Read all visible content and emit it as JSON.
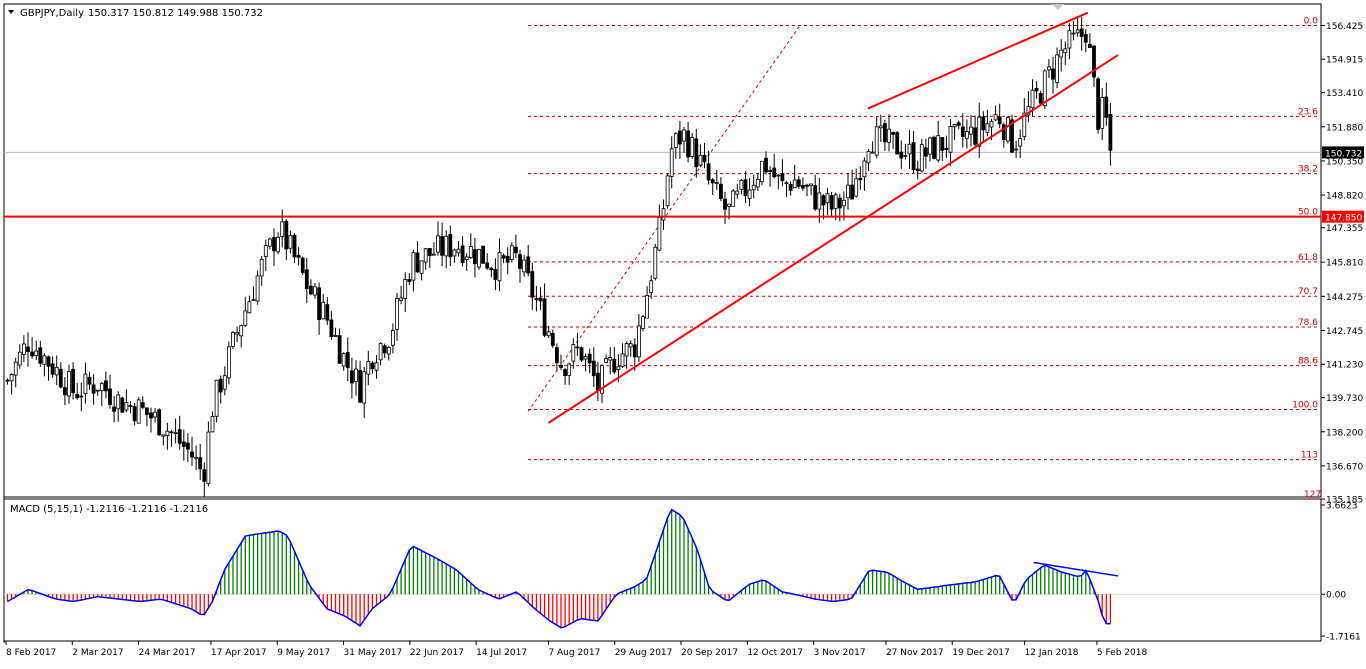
{
  "header": {
    "symbol_label": "GBPJPY,Daily",
    "ohlc_label": "150.317 150.812 149.988 150.732"
  },
  "colors": {
    "background": "#ffffff",
    "bull_candle": "#000000",
    "bear_candle": "#000000",
    "grid": "#c0c0c0",
    "fib_line": "#cc0000",
    "support_line": "#ff0000",
    "price_tag_bg": "#000000",
    "level_tag_bg": "#ff0000",
    "macd_positive": "#008000",
    "macd_negative": "#ff0000",
    "macd_signal": "#0000ff"
  },
  "chart_data": {
    "type": "candlestick",
    "symbol": "GBPJPY",
    "timeframe": "Daily",
    "y_axis_ticks": [
      "156.425",
      "154.915",
      "153.410",
      "151.880",
      "150.350",
      "148.820",
      "147.355",
      "145.810",
      "144.275",
      "142.745",
      "141.230",
      "139.730",
      "138.200",
      "136.670",
      "135.185"
    ],
    "ylim": [
      135.185,
      157.3
    ],
    "x_axis_labels": [
      "8 Feb 2017",
      "2 Mar 2017",
      "24 Mar 2017",
      "17 Apr 2017",
      "9 May 2017",
      "31 May 2017",
      "22 Jun 2017",
      "14 Jul 2017",
      "7 Aug 2017",
      "29 Aug 2017",
      "20 Sep 2017",
      "12 Oct 2017",
      "3 Nov 2017",
      "27 Nov 2017",
      "19 Dec 2017",
      "12 Jan 2018",
      "5 Feb 2018"
    ],
    "current_price": "150.732",
    "horizontal_level": "147.850",
    "close_path": [
      {
        "d": "8 Feb 2017",
        "c": 140.5
      },
      {
        "d": "15 Feb 2017",
        "c": 142.3
      },
      {
        "d": "24 Feb 2017",
        "c": 141.0
      },
      {
        "d": "2 Mar 2017",
        "c": 140.0
      },
      {
        "d": "10 Mar 2017",
        "c": 140.4
      },
      {
        "d": "17 Mar 2017",
        "c": 139.6
      },
      {
        "d": "24 Mar 2017",
        "c": 139.2
      },
      {
        "d": "31 Mar 2017",
        "c": 138.6
      },
      {
        "d": "10 Apr 2017",
        "c": 137.2
      },
      {
        "d": "14 Apr 2017",
        "c": 136.3
      },
      {
        "d": "17 Apr 2017",
        "c": 139.3
      },
      {
        "d": "26 Apr 2017",
        "c": 143.0
      },
      {
        "d": "3 May 2017",
        "c": 145.5
      },
      {
        "d": "9 May 2017",
        "c": 147.3
      },
      {
        "d": "12 May 2017",
        "c": 146.6
      },
      {
        "d": "19 May 2017",
        "c": 144.6
      },
      {
        "d": "25 May 2017",
        "c": 143.3
      },
      {
        "d": "31 May 2017",
        "c": 141.4
      },
      {
        "d": "5 Jun 2017",
        "c": 140.2
      },
      {
        "d": "9 Jun 2017",
        "c": 141.7
      },
      {
        "d": "15 Jun 2017",
        "c": 142.6
      },
      {
        "d": "22 Jun 2017",
        "c": 145.8
      },
      {
        "d": "30 Jun 2017",
        "c": 146.3
      },
      {
        "d": "7 Jul 2017",
        "c": 146.6
      },
      {
        "d": "14 Jul 2017",
        "c": 146.2
      },
      {
        "d": "21 Jul 2017",
        "c": 145.6
      },
      {
        "d": "27 Jul 2017",
        "c": 146.0
      },
      {
        "d": "2 Aug 2017",
        "c": 144.2
      },
      {
        "d": "7 Aug 2017",
        "c": 142.6
      },
      {
        "d": "11 Aug 2017",
        "c": 141.2
      },
      {
        "d": "17 Aug 2017",
        "c": 141.9
      },
      {
        "d": "23 Aug 2017",
        "c": 140.2
      },
      {
        "d": "29 Aug 2017",
        "c": 141.6
      },
      {
        "d": "4 Sep 2017",
        "c": 142.0
      },
      {
        "d": "8 Sep 2017",
        "c": 144.3
      },
      {
        "d": "13 Sep 2017",
        "c": 147.6
      },
      {
        "d": "16 Sep 2017",
        "c": 150.8
      },
      {
        "d": "20 Sep 2017",
        "c": 151.6
      },
      {
        "d": "25 Sep 2017",
        "c": 150.5
      },
      {
        "d": "29 Sep 2017",
        "c": 149.3
      },
      {
        "d": "5 Oct 2017",
        "c": 148.0
      },
      {
        "d": "12 Oct 2017",
        "c": 149.3
      },
      {
        "d": "17 Oct 2017",
        "c": 150.3
      },
      {
        "d": "23 Oct 2017",
        "c": 149.2
      },
      {
        "d": "27 Oct 2017",
        "c": 149.5
      },
      {
        "d": "3 Nov 2017",
        "c": 148.7
      },
      {
        "d": "9 Nov 2017",
        "c": 148.2
      },
      {
        "d": "15 Nov 2017",
        "c": 148.9
      },
      {
        "d": "21 Nov 2017",
        "c": 151.5
      },
      {
        "d": "27 Nov 2017",
        "c": 151.1
      },
      {
        "d": "1 Dec 2017",
        "c": 151.0
      },
      {
        "d": "7 Dec 2017",
        "c": 150.4
      },
      {
        "d": "13 Dec 2017",
        "c": 151.0
      },
      {
        "d": "19 Dec 2017",
        "c": 151.3
      },
      {
        "d": "26 Dec 2017",
        "c": 151.6
      },
      {
        "d": "3 Jan 2018",
        "c": 152.4
      },
      {
        "d": "8 Jan 2018",
        "c": 151.1
      },
      {
        "d": "12 Jan 2018",
        "c": 152.4
      },
      {
        "d": "18 Jan 2018",
        "c": 153.8
      },
      {
        "d": "24 Jan 2018",
        "c": 155.3
      },
      {
        "d": "30 Jan 2018",
        "c": 155.9
      },
      {
        "d": "1 Feb 2018",
        "c": 156.3
      },
      {
        "d": "5 Feb 2018",
        "c": 152.2
      },
      {
        "d": "7 Feb 2018",
        "c": 152.7
      },
      {
        "d": "9 Feb 2018",
        "c": 150.73
      }
    ],
    "fibonacci_levels": [
      {
        "label": "0.0",
        "price": 156.425
      },
      {
        "label": "23.6",
        "price": 152.35
      },
      {
        "label": "38.2",
        "price": 149.78
      },
      {
        "label": "50.0",
        "price": 147.85
      },
      {
        "label": "61.8",
        "price": 145.82
      },
      {
        "label": "70.7",
        "price": 144.28
      },
      {
        "label": "78.6",
        "price": 142.9
      },
      {
        "label": "88.6",
        "price": 141.17
      },
      {
        "label": "100.0",
        "price": 139.2
      },
      {
        "label": "113",
        "price": 136.95
      },
      {
        "label": "127",
        "price": 134.9
      }
    ],
    "channel_lines": [
      {
        "name": "rising-support",
        "from": {
          "d": "7 Aug 2017",
          "p": 138.6
        },
        "to": {
          "d": "12 Feb 2018",
          "p": 155.1
        }
      },
      {
        "name": "rising-resistance",
        "from": {
          "d": "21 Nov 2017",
          "p": 152.7
        },
        "to": {
          "d": "2 Feb 2018",
          "p": 157.0
        }
      }
    ],
    "macd": {
      "label": "MACD (5,15,1) -1.2116 -1.2116 -1.2116",
      "y_axis_ticks": [
        "3.6623",
        "0.00",
        "-1.7161"
      ],
      "ylim": [
        -1.7161,
        3.6623
      ],
      "histogram_path": [
        {
          "d": "8 Feb 2017",
          "v": -0.3
        },
        {
          "d": "15 Feb 2017",
          "v": 0.2
        },
        {
          "d": "24 Feb 2017",
          "v": -0.2
        },
        {
          "d": "2 Mar 2017",
          "v": -0.3
        },
        {
          "d": "10 Mar 2017",
          "v": -0.1
        },
        {
          "d": "17 Mar 2017",
          "v": -0.2
        },
        {
          "d": "24 Mar 2017",
          "v": -0.3
        },
        {
          "d": "31 Mar 2017",
          "v": -0.2
        },
        {
          "d": "10 Apr 2017",
          "v": -0.6
        },
        {
          "d": "14 Apr 2017",
          "v": -0.9
        },
        {
          "d": "17 Apr 2017",
          "v": -0.3
        },
        {
          "d": "21 Apr 2017",
          "v": 1.0
        },
        {
          "d": "28 Apr 2017",
          "v": 2.4
        },
        {
          "d": "9 May 2017",
          "v": 2.6
        },
        {
          "d": "12 May 2017",
          "v": 2.4
        },
        {
          "d": "19 May 2017",
          "v": 0.4
        },
        {
          "d": "25 May 2017",
          "v": -0.6
        },
        {
          "d": "31 May 2017",
          "v": -0.9
        },
        {
          "d": "5 Jun 2017",
          "v": -1.3
        },
        {
          "d": "9 Jun 2017",
          "v": -0.6
        },
        {
          "d": "15 Jun 2017",
          "v": 0.0
        },
        {
          "d": "22 Jun 2017",
          "v": 2.0
        },
        {
          "d": "30 Jun 2017",
          "v": 1.5
        },
        {
          "d": "7 Jul 2017",
          "v": 1.0
        },
        {
          "d": "14 Jul 2017",
          "v": 0.2
        },
        {
          "d": "21 Jul 2017",
          "v": -0.2
        },
        {
          "d": "27 Jul 2017",
          "v": 0.1
        },
        {
          "d": "2 Aug 2017",
          "v": -0.6
        },
        {
          "d": "7 Aug 2017",
          "v": -1.1
        },
        {
          "d": "11 Aug 2017",
          "v": -1.4
        },
        {
          "d": "17 Aug 2017",
          "v": -1.0
        },
        {
          "d": "23 Aug 2017",
          "v": -1.1
        },
        {
          "d": "29 Aug 2017",
          "v": 0.0
        },
        {
          "d": "4 Sep 2017",
          "v": 0.3
        },
        {
          "d": "8 Sep 2017",
          "v": 0.6
        },
        {
          "d": "13 Sep 2017",
          "v": 2.4
        },
        {
          "d": "16 Sep 2017",
          "v": 3.5
        },
        {
          "d": "20 Sep 2017",
          "v": 3.2
        },
        {
          "d": "25 Sep 2017",
          "v": 1.8
        },
        {
          "d": "29 Sep 2017",
          "v": 0.2
        },
        {
          "d": "5 Oct 2017",
          "v": -0.3
        },
        {
          "d": "12 Oct 2017",
          "v": 0.4
        },
        {
          "d": "17 Oct 2017",
          "v": 0.6
        },
        {
          "d": "23 Oct 2017",
          "v": 0.1
        },
        {
          "d": "27 Oct 2017",
          "v": 0.0
        },
        {
          "d": "3 Nov 2017",
          "v": -0.2
        },
        {
          "d": "9 Nov 2017",
          "v": -0.3
        },
        {
          "d": "15 Nov 2017",
          "v": -0.2
        },
        {
          "d": "21 Nov 2017",
          "v": 1.0
        },
        {
          "d": "27 Nov 2017",
          "v": 0.9
        },
        {
          "d": "1 Dec 2017",
          "v": 0.6
        },
        {
          "d": "7 Dec 2017",
          "v": 0.2
        },
        {
          "d": "13 Dec 2017",
          "v": 0.3
        },
        {
          "d": "19 Dec 2017",
          "v": 0.4
        },
        {
          "d": "26 Dec 2017",
          "v": 0.5
        },
        {
          "d": "3 Jan 2018",
          "v": 0.8
        },
        {
          "d": "8 Jan 2018",
          "v": -0.4
        },
        {
          "d": "12 Jan 2018",
          "v": 0.6
        },
        {
          "d": "18 Jan 2018",
          "v": 1.2
        },
        {
          "d": "24 Jan 2018",
          "v": 0.9
        },
        {
          "d": "30 Jan 2018",
          "v": 0.7
        },
        {
          "d": "1 Feb 2018",
          "v": 1.0
        },
        {
          "d": "5 Feb 2018",
          "v": -0.3
        },
        {
          "d": "7 Feb 2018",
          "v": -1.2
        },
        {
          "d": "9 Feb 2018",
          "v": -1.21
        }
      ],
      "divergence_line": {
        "from": {
          "d": "15 Jan 2018",
          "v": 1.3
        },
        "to": {
          "d": "12 Feb 2018",
          "v": 0.75
        }
      }
    }
  }
}
